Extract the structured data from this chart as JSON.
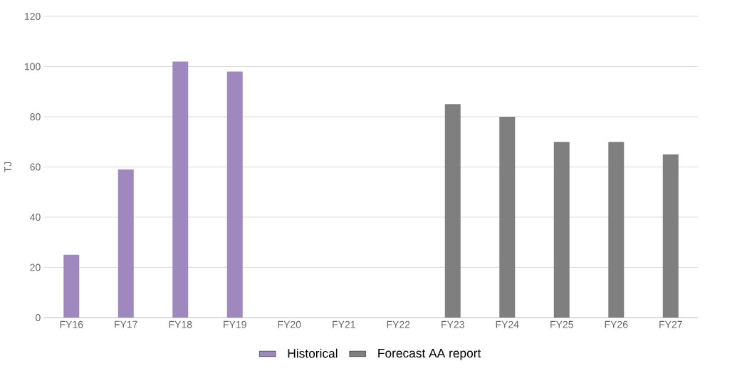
{
  "chart_data": {
    "type": "bar",
    "ylabel": "TJ",
    "categories": [
      "FY16",
      "FY17",
      "FY18",
      "FY19",
      "FY20",
      "FY21",
      "FY22",
      "FY23",
      "FY24",
      "FY25",
      "FY26",
      "FY27"
    ],
    "series": [
      {
        "name": "Historical",
        "color": "#9e88be",
        "values": [
          25,
          59,
          102,
          98,
          null,
          null,
          null,
          null,
          null,
          null,
          null,
          null
        ]
      },
      {
        "name": "Forecast AA report",
        "color": "#7f7f7f",
        "values": [
          null,
          null,
          null,
          null,
          null,
          null,
          null,
          85,
          80,
          70,
          70,
          65
        ]
      }
    ],
    "ylim": [
      0,
      120
    ],
    "yticks": [
      0,
      20,
      40,
      60,
      80,
      100,
      120
    ],
    "grid": "y",
    "legend": "bottom"
  }
}
